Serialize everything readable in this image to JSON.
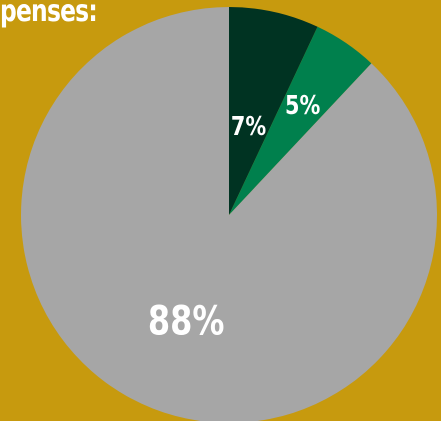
{
  "header": {
    "title": "penses:"
  },
  "colors": {
    "background": "#C79A0E",
    "text": "#ffffff"
  },
  "chart_data": {
    "type": "pie",
    "title": "",
    "start": "12 o'clock",
    "direction": "clockwise",
    "legend": "none",
    "slices": [
      {
        "value": 7,
        "label": "7%",
        "color": "#003322"
      },
      {
        "value": 5,
        "label": "5%",
        "color": "#00804D"
      },
      {
        "value": 88,
        "label": "88%",
        "color": "#A6A6A6"
      }
    ]
  }
}
